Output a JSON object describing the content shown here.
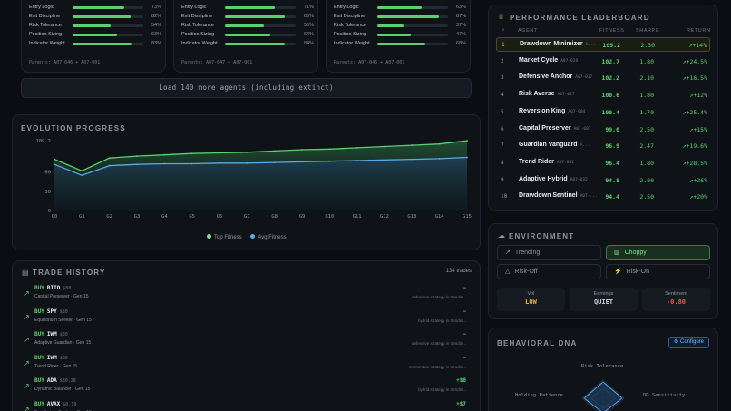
{
  "agent_cards": [
    {
      "traits": [
        {
          "label": "Entry Logic",
          "value": 73,
          "text": "73%"
        },
        {
          "label": "Exit Discipline",
          "value": 82,
          "text": "82%"
        },
        {
          "label": "Risk Tolerance",
          "value": 54,
          "text": "54%"
        },
        {
          "label": "Position Sizing",
          "value": 63,
          "text": "63%"
        },
        {
          "label": "Indicator Weight",
          "value": 83,
          "text": "83%"
        }
      ],
      "parents": "Parents: A07-046 + A07-001"
    },
    {
      "traits": [
        {
          "label": "Entry Logic",
          "value": 71,
          "text": "71%"
        },
        {
          "label": "Exit Discipline",
          "value": 85,
          "text": "85%"
        },
        {
          "label": "Risk Tolerance",
          "value": 55,
          "text": "55%"
        },
        {
          "label": "Position Sizing",
          "value": 64,
          "text": "64%"
        },
        {
          "label": "Indicator Weight",
          "value": 84,
          "text": "84%"
        }
      ],
      "parents": "Parents: A07-047 + A07-001"
    },
    {
      "traits": [
        {
          "label": "Entry Logic",
          "value": 63,
          "text": "63%"
        },
        {
          "label": "Exit Discipline",
          "value": 87,
          "text": "87%"
        },
        {
          "label": "Risk Tolerance",
          "value": 37,
          "text": "37%"
        },
        {
          "label": "Position Sizing",
          "value": 47,
          "text": "47%"
        },
        {
          "label": "Indicator Weight",
          "value": 68,
          "text": "68%"
        }
      ],
      "parents": "Parents: A07-046 + A07-007"
    }
  ],
  "load_more_label": "Load 140 more agents (including extinct)",
  "evolution": {
    "title": "EVOLUTION PROGRESS",
    "legend": {
      "top": "Top Fitness",
      "avg": "Avg Fitness"
    }
  },
  "chart_data": {
    "type": "area",
    "x": [
      "G0",
      "G1",
      "G2",
      "G3",
      "G4",
      "G5",
      "G6",
      "G7",
      "G8",
      "G9",
      "G10",
      "G11",
      "G12",
      "G13",
      "G14",
      "G15"
    ],
    "y_ticks": [
      "109.2",
      "60",
      "30",
      "0"
    ],
    "ylim": [
      0,
      109.2
    ],
    "series": [
      {
        "name": "Top Fitness",
        "color": "#5bd06e",
        "values": [
          80,
          62,
          82,
          85,
          87,
          89,
          90,
          91,
          93,
          95,
          96,
          98,
          100,
          102,
          104,
          109
        ]
      },
      {
        "name": "Avg Fitness",
        "color": "#5aa9e6",
        "values": [
          72,
          55,
          70,
          72,
          73,
          73,
          74,
          74,
          75,
          76,
          77,
          78,
          79,
          80,
          81,
          83
        ]
      }
    ],
    "grid": false,
    "legend_position": "bottom"
  },
  "trades": {
    "title": "TRADE HISTORY",
    "count": "134 trades",
    "rows": [
      {
        "action": "BUY",
        "symbol": "BITO",
        "price": "$80",
        "agent": "Capital Preserver · Gen 15",
        "pl": "—",
        "pl_positive": false,
        "note": "defensive strategy in trendin..."
      },
      {
        "action": "BUY",
        "symbol": "SPY",
        "price": "$80",
        "agent": "Equilibrium Seeker · Gen 15",
        "pl": "—",
        "pl_positive": false,
        "note": "hybrid strategy in trendin..."
      },
      {
        "action": "BUY",
        "symbol": "IWM",
        "price": "$80",
        "agent": "Adaptive Guardian · Gen 15",
        "pl": "—",
        "pl_positive": false,
        "note": "defensive strategy in trendin..."
      },
      {
        "action": "BUY",
        "symbol": "IWM",
        "price": "$80",
        "agent": "Trend Rider · Gen 15",
        "pl": "—",
        "pl_positive": false,
        "note": "momentum strategy in trendin..."
      },
      {
        "action": "BUY",
        "symbol": "ADA",
        "price": "$80.28",
        "agent": "Dynamic Balancer · Gen 15",
        "pl": "+$0",
        "pl_positive": true,
        "note": "hybrid strategy in trendin..."
      },
      {
        "action": "BUY",
        "symbol": "AVAX",
        "price": "$0.19",
        "agent": "Equilibrium Seeker · Gen 15",
        "pl": "+$7",
        "pl_positive": true,
        "note": ""
      }
    ]
  },
  "leaderboard": {
    "title": "PERFORMANCE LEADERBOARD",
    "headers": {
      "rank": "#",
      "agent": "AGENT",
      "fitness": "FITNESS",
      "sharpe": "SHARPE",
      "return": "RETURN"
    },
    "rows": [
      {
        "rank": "1",
        "name": "Drawdown Minimizer",
        "id": "A...",
        "fitness": "109.2",
        "sharpe": "2.30",
        "ret": "+14%"
      },
      {
        "rank": "2",
        "name": "Market Cycle",
        "id": "A07-028",
        "fitness": "102.7",
        "sharpe": "1.80",
        "ret": "+24.5%"
      },
      {
        "rank": "3",
        "name": "Defensive Anchor",
        "id": "A07-017",
        "fitness": "102.2",
        "sharpe": "2.10",
        "ret": "+16.5%"
      },
      {
        "rank": "4",
        "name": "Risk Averse",
        "id": "A07-027",
        "fitness": "100.6",
        "sharpe": "1.80",
        "ret": "+12%"
      },
      {
        "rank": "5",
        "name": "Reversion King",
        "id": "A07-004",
        "fitness": "100.4",
        "sharpe": "1.70",
        "ret": "+25.4%"
      },
      {
        "rank": "6",
        "name": "Capital Preserver",
        "id": "A07-007",
        "fitness": "99.0",
        "sharpe": "2.50",
        "ret": "+15%"
      },
      {
        "rank": "7",
        "name": "Guardian Vanguard",
        "id": "A...",
        "fitness": "96.9",
        "sharpe": "2.47",
        "ret": "+19.6%"
      },
      {
        "rank": "8",
        "name": "Trend Rider",
        "id": "A07-001",
        "fitness": "96.4",
        "sharpe": "1.80",
        "ret": "+28.5%"
      },
      {
        "rank": "9",
        "name": "Adaptive Hybrid",
        "id": "A07-032",
        "fitness": "94.8",
        "sharpe": "2.00",
        "ret": "+26%"
      },
      {
        "rank": "10",
        "name": "Drawdown Sentinel",
        "id": "A07-...",
        "fitness": "94.4",
        "sharpe": "2.50",
        "ret": "+20%"
      }
    ]
  },
  "environment": {
    "title": "ENVIRONMENT",
    "regimes": [
      {
        "label": "Trending",
        "active": false
      },
      {
        "label": "Choppy",
        "active": true
      },
      {
        "label": "Risk-Off",
        "active": false
      },
      {
        "label": "Risk-On",
        "active": false
      }
    ],
    "stats": [
      {
        "key": "Vol",
        "value": "LOW",
        "color": "#e3b341"
      },
      {
        "key": "Earnings",
        "value": "QUIET",
        "color": "#c9d1d9"
      },
      {
        "key": "Sentiment",
        "value": "-0.80",
        "color": "#f85149"
      }
    ]
  },
  "dna": {
    "title": "BEHAVIORAL DNA",
    "configure_label": "Configure",
    "axes": [
      "Risk Tolerance",
      "Holding Patience",
      "DD Sensitivity"
    ]
  }
}
